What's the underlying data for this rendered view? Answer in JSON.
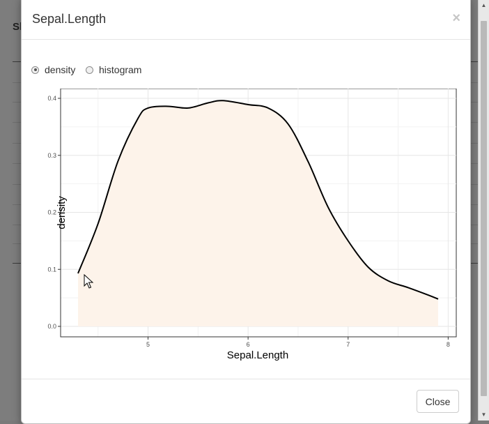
{
  "background": {
    "title_fragment": "Sl"
  },
  "modal": {
    "title": "Sepal.Length",
    "close_glyph": "×",
    "options": [
      {
        "label": "density",
        "selected": true
      },
      {
        "label": "histogram",
        "selected": false
      }
    ],
    "close_button_label": "Close"
  },
  "colors": {
    "fill": "#fdf3ea",
    "line": "#000000",
    "accent": "#333333"
  },
  "chart_data": {
    "type": "area",
    "xlabel": "Sepal.Length",
    "ylabel": "density",
    "xlim": [
      4.3,
      7.9
    ],
    "ylim": [
      0,
      0.4
    ],
    "x_ticks": [
      "5",
      "6",
      "7",
      "8"
    ],
    "y_ticks": [
      "0.0",
      "0.1",
      "0.2",
      "0.3",
      "0.4"
    ],
    "grid": true,
    "x": [
      4.3,
      4.5,
      4.7,
      4.9,
      5.0,
      5.2,
      5.4,
      5.6,
      5.75,
      6.0,
      6.2,
      6.4,
      6.6,
      6.8,
      7.0,
      7.2,
      7.4,
      7.6,
      7.8,
      7.9
    ],
    "y": [
      0.093,
      0.18,
      0.29,
      0.365,
      0.383,
      0.386,
      0.383,
      0.392,
      0.396,
      0.389,
      0.383,
      0.355,
      0.289,
      0.209,
      0.15,
      0.104,
      0.08,
      0.068,
      0.055,
      0.048
    ]
  }
}
